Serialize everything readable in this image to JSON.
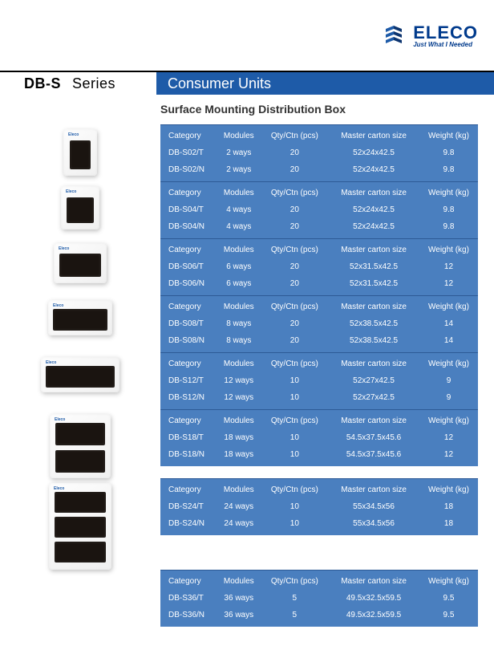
{
  "logo": {
    "name": "ELECO",
    "tagline": "Just What I Needed",
    "brand_color": "#003a8c"
  },
  "header": {
    "series_prefix": "DB-S",
    "series_word": "Series",
    "title": "Consumer Units",
    "title_bg": "#1e5ba8",
    "title_color": "#ffffff"
  },
  "subtitle": "Surface Mounting Distribution Box",
  "table_style": {
    "bg_color": "#4a7fbf",
    "text_color": "#ffffff",
    "font_size": 10,
    "border_color": "#2d5a96"
  },
  "columns": [
    "Category",
    "Modules",
    "Qty/Ctn (pcs)",
    "Master carton size",
    "Weight (kg)"
  ],
  "groups": [
    {
      "img": "s02",
      "rows": [
        [
          "DB-S02/T",
          "2 ways",
          "20",
          "52x24x42.5",
          "9.8"
        ],
        [
          "DB-S02/N",
          "2 ways",
          "20",
          "52x24x42.5",
          "9.8"
        ]
      ]
    },
    {
      "img": "s04",
      "rows": [
        [
          "DB-S04/T",
          "4 ways",
          "20",
          "52x24x42.5",
          "9.8"
        ],
        [
          "DB-S04/N",
          "4 ways",
          "20",
          "52x24x42.5",
          "9.8"
        ]
      ]
    },
    {
      "img": "s06",
      "rows": [
        [
          "DB-S06/T",
          "6 ways",
          "20",
          "52x31.5x42.5",
          "12"
        ],
        [
          "DB-S06/N",
          "6 ways",
          "20",
          "52x31.5x42.5",
          "12"
        ]
      ]
    },
    {
      "img": "s08",
      "rows": [
        [
          "DB-S08/T",
          "8 ways",
          "20",
          "52x38.5x42.5",
          "14"
        ],
        [
          "DB-S08/N",
          "8 ways",
          "20",
          "52x38.5x42.5",
          "14"
        ]
      ]
    },
    {
      "img": "s12",
      "rows": [
        [
          "DB-S12/T",
          "12 ways",
          "10",
          "52x27x42.5",
          "9"
        ],
        [
          "DB-S12/N",
          "12 ways",
          "10",
          "52x27x42.5",
          "9"
        ]
      ]
    },
    {
      "img": "s18",
      "rows": [
        [
          "DB-S18/T",
          "18 ways",
          "10",
          "54.5x37.5x45.6",
          "12"
        ],
        [
          "DB-S18/N",
          "18 ways",
          "10",
          "54.5x37.5x45.6",
          "12"
        ]
      ]
    },
    {
      "img": "s24",
      "rows": [
        [
          "DB-S24/T",
          "24 ways",
          "10",
          "55x34.5x56",
          "18"
        ],
        [
          "DB-S24/N",
          "24 ways",
          "10",
          "55x34.5x56",
          "18"
        ]
      ]
    },
    {
      "img": null,
      "rows": [
        [
          "DB-S36/T",
          "36 ways",
          "5",
          "49.5x32.5x59.5",
          "9.5"
        ],
        [
          "DB-S36/N",
          "36 ways",
          "5",
          "49.5x32.5x59.5",
          "9.5"
        ]
      ]
    }
  ]
}
